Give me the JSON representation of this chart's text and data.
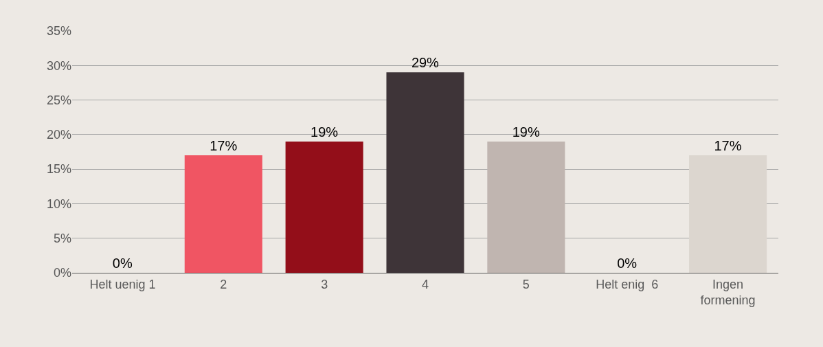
{
  "chart_data": {
    "type": "bar",
    "categories": [
      "Helt uenig 1",
      "2",
      "3",
      "4",
      "5",
      "Helt enig  6",
      "Ingen formening"
    ],
    "values": [
      0,
      17,
      19,
      29,
      19,
      0,
      17
    ],
    "value_labels": [
      "0%",
      "17%",
      "19%",
      "29%",
      "19%",
      "0%",
      "17%"
    ],
    "colors": [
      "#f05563",
      "#f05563",
      "#930e19",
      "#3e3438",
      "#c0b5b0",
      "#dcd6cf",
      "#dcd6cf"
    ],
    "ylim": [
      0,
      35
    ],
    "yticks": [
      {
        "value": 0,
        "label": "0%"
      },
      {
        "value": 5,
        "label": "5%"
      },
      {
        "value": 10,
        "label": "10%"
      },
      {
        "value": 15,
        "label": "15%"
      },
      {
        "value": 20,
        "label": "20%"
      },
      {
        "value": 25,
        "label": "25%"
      },
      {
        "value": 30,
        "label": "30%"
      },
      {
        "value": 35,
        "label": "35%"
      }
    ],
    "grid": "y",
    "legend": false
  }
}
